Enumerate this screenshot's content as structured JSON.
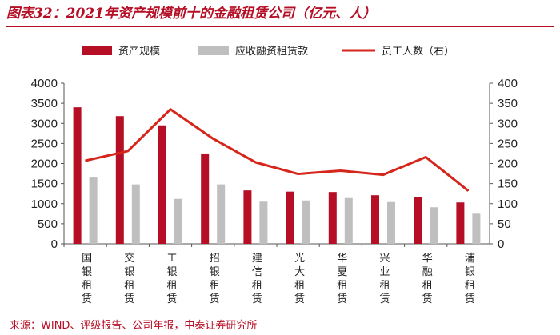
{
  "title": "图表32：2021年资产规模前十的金融租赁公司（亿元、人）",
  "source": "来源：WIND、评级报告、公司年报，中泰证券研究所",
  "colors": {
    "accent": "#b50e25",
    "bar_primary": "#b50e25",
    "bar_secondary": "#bfbfbf",
    "line": "#d6261b"
  },
  "chart_data": {
    "type": "bar",
    "categories": [
      "国银租赁",
      "交银租赁",
      "工银租赁",
      "招银租赁",
      "建信租赁",
      "光大租赁",
      "华夏租赁",
      "兴业租赁",
      "华融租赁",
      "浦银租赁"
    ],
    "series": [
      {
        "name": "资产规模",
        "type": "bar",
        "axis": "left",
        "values": [
          3400,
          3180,
          2950,
          2250,
          1330,
          1300,
          1290,
          1210,
          1170,
          1030
        ]
      },
      {
        "name": "应收融资租赁款",
        "type": "bar",
        "axis": "left",
        "values": [
          1650,
          1480,
          1120,
          1480,
          1050,
          1080,
          1140,
          1040,
          910,
          750
        ]
      },
      {
        "name": "员工人数（右）",
        "type": "line",
        "axis": "right",
        "values": [
          207,
          231,
          335,
          262,
          203,
          174,
          182,
          172,
          216,
          132
        ]
      }
    ],
    "y_left": {
      "min": 0,
      "max": 4000,
      "ticks": [
        "0",
        "500",
        "1000",
        "1500",
        "2000",
        "2500",
        "3000",
        "3500",
        "4000"
      ]
    },
    "y_right": {
      "min": 0,
      "max": 400,
      "ticks": [
        "0",
        "50",
        "100",
        "150",
        "200",
        "250",
        "300",
        "350",
        "400"
      ]
    },
    "legend_position": "top"
  }
}
